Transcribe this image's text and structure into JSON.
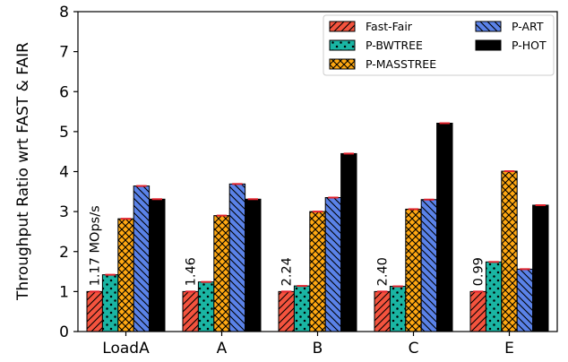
{
  "chart_data": {
    "type": "bar",
    "title": "",
    "xlabel": "",
    "ylabel": "Throughput Ratio wrt FAST & FAIR",
    "ylim": [
      0,
      8
    ],
    "yticks": [
      "0",
      "1",
      "2",
      "3",
      "4",
      "5",
      "6",
      "7",
      "8"
    ],
    "categories": [
      "LoadA",
      "A",
      "B",
      "C",
      "E"
    ],
    "grid": false,
    "legend_position": "top-right",
    "series": [
      {
        "name": "Fast-Fair",
        "color": "#f4533e",
        "hatch": "diagonal-forward",
        "values": [
          1.0,
          1.0,
          1.0,
          1.0,
          1.0
        ]
      },
      {
        "name": "P-BWTREE",
        "color": "#1ab5a3",
        "hatch": "dots",
        "values": [
          1.42,
          1.24,
          1.14,
          1.13,
          1.74
        ]
      },
      {
        "name": "P-MASSTREE",
        "color": "#ffa812",
        "hatch": "crosshatch",
        "values": [
          2.82,
          2.9,
          3.0,
          3.06,
          4.01
        ]
      },
      {
        "name": "P-ART",
        "color": "#5a82e8",
        "hatch": "diagonal-back",
        "values": [
          3.64,
          3.69,
          3.35,
          3.3,
          1.56
        ]
      },
      {
        "name": "P-HOT",
        "color": "#000000",
        "hatch": "none",
        "values": [
          3.31,
          3.31,
          4.45,
          5.21,
          3.16
        ]
      }
    ],
    "annotations": [
      "1.17  MOps/s",
      "1.46",
      "2.24",
      "2.40",
      "0.99"
    ]
  }
}
